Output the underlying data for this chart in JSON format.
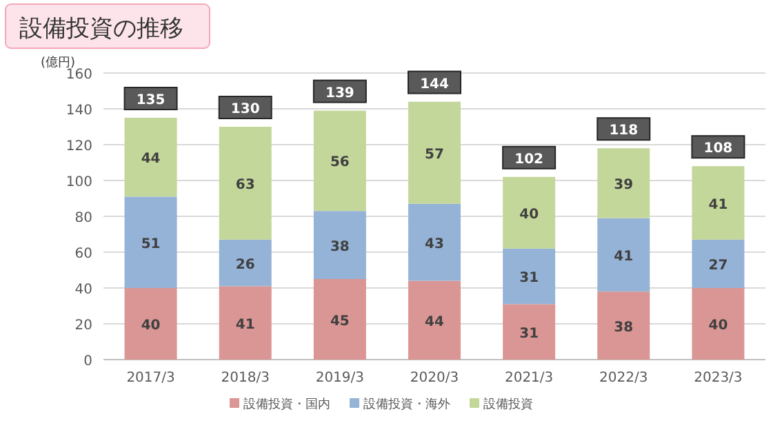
{
  "chart_data": {
    "type": "bar",
    "title": "設備投資の推移",
    "ylabel": "(億円)",
    "stacked": true,
    "categories": [
      "2017/3",
      "2018/3",
      "2019/3",
      "2020/3",
      "2021/3",
      "2022/3",
      "2023/3"
    ],
    "series": [
      {
        "name": "設備投資・国内",
        "color": "#da9694",
        "values": [
          40,
          41,
          45,
          44,
          31,
          38,
          40
        ]
      },
      {
        "name": "設備投資・海外",
        "color": "#95b3d7",
        "values": [
          51,
          26,
          38,
          43,
          31,
          41,
          27
        ]
      },
      {
        "name": "設備投資",
        "color": "#c4d79b",
        "values": [
          44,
          63,
          56,
          57,
          40,
          39,
          41
        ]
      }
    ],
    "totals": [
      "135",
      "130",
      "139",
      "144",
      "102",
      "118",
      "108"
    ],
    "ylim": [
      0,
      160
    ],
    "yticks": [
      0,
      20,
      40,
      60,
      80,
      100,
      120,
      140,
      160
    ],
    "grid": "y",
    "legend": "bottom",
    "data_labels": true
  }
}
